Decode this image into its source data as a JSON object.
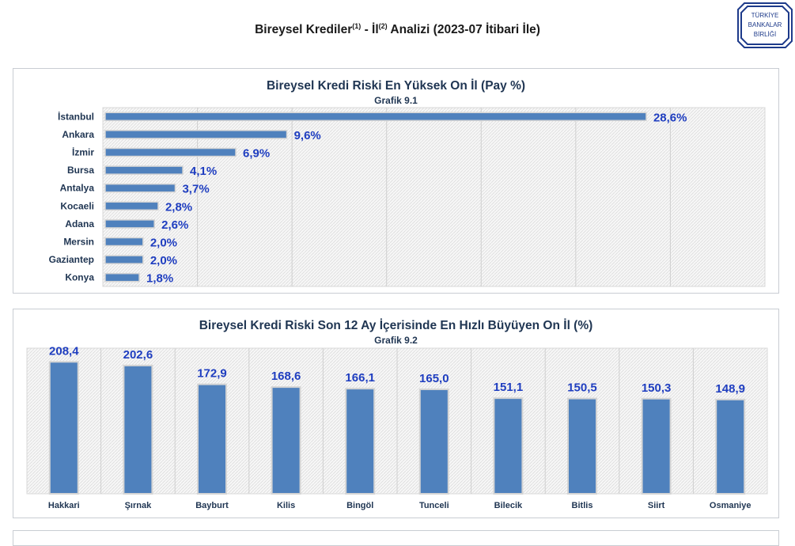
{
  "header": {
    "title_part1": "Bireysel Krediler",
    "sup1": "(1)",
    "title_part2": " - İl",
    "sup2": "(2)",
    "title_part3": " Analizi (2023-07 İtibari İle)"
  },
  "logo": {
    "lines": [
      "TÜRKİYE",
      "BANKALAR",
      "BİRLİĞİ"
    ],
    "color": "#1d3a8a"
  },
  "colors": {
    "bar": "#4f81bd",
    "label": "#1f3ec0",
    "axis_text": "#1f3552"
  },
  "chart_data": [
    {
      "type": "bar",
      "orientation": "horizontal",
      "title": "Bireysel Kredi Riski En Yüksek On İl (Pay %)",
      "subtitle": "Grafik 9.1",
      "categories": [
        "İstanbul",
        "Ankara",
        "İzmir",
        "Bursa",
        "Antalya",
        "Kocaeli",
        "Adana",
        "Mersin",
        "Gaziantep",
        "Konya"
      ],
      "values": [
        28.6,
        9.6,
        6.9,
        4.1,
        3.7,
        2.8,
        2.6,
        2.0,
        2.0,
        1.8
      ],
      "labels": [
        "28,6%",
        "9,6%",
        "6,9%",
        "4,1%",
        "3,7%",
        "2,8%",
        "2,6%",
        "2,0%",
        "2,0%",
        "1,8%"
      ],
      "xlim": [
        0,
        35
      ],
      "grid": true
    },
    {
      "type": "bar",
      "orientation": "vertical",
      "title": "Bireysel Kredi Riski Son 12 Ay İçerisinde En Hızlı Büyüyen On İl  (%)",
      "subtitle": "Grafik 9.2",
      "categories": [
        "Hakkari",
        "Şırnak",
        "Bayburt",
        "Kilis",
        "Bingöl",
        "Tunceli",
        "Bilecik",
        "Bitlis",
        "Siirt",
        "Osmaniye"
      ],
      "values": [
        208.4,
        202.6,
        172.9,
        168.6,
        166.1,
        165.0,
        151.1,
        150.5,
        150.3,
        148.9
      ],
      "labels": [
        "208,4",
        "202,6",
        "172,9",
        "168,6",
        "166,1",
        "165,0",
        "151,1",
        "150,5",
        "150,3",
        "148,9"
      ],
      "ylim": [
        0,
        230
      ],
      "grid": true
    }
  ]
}
